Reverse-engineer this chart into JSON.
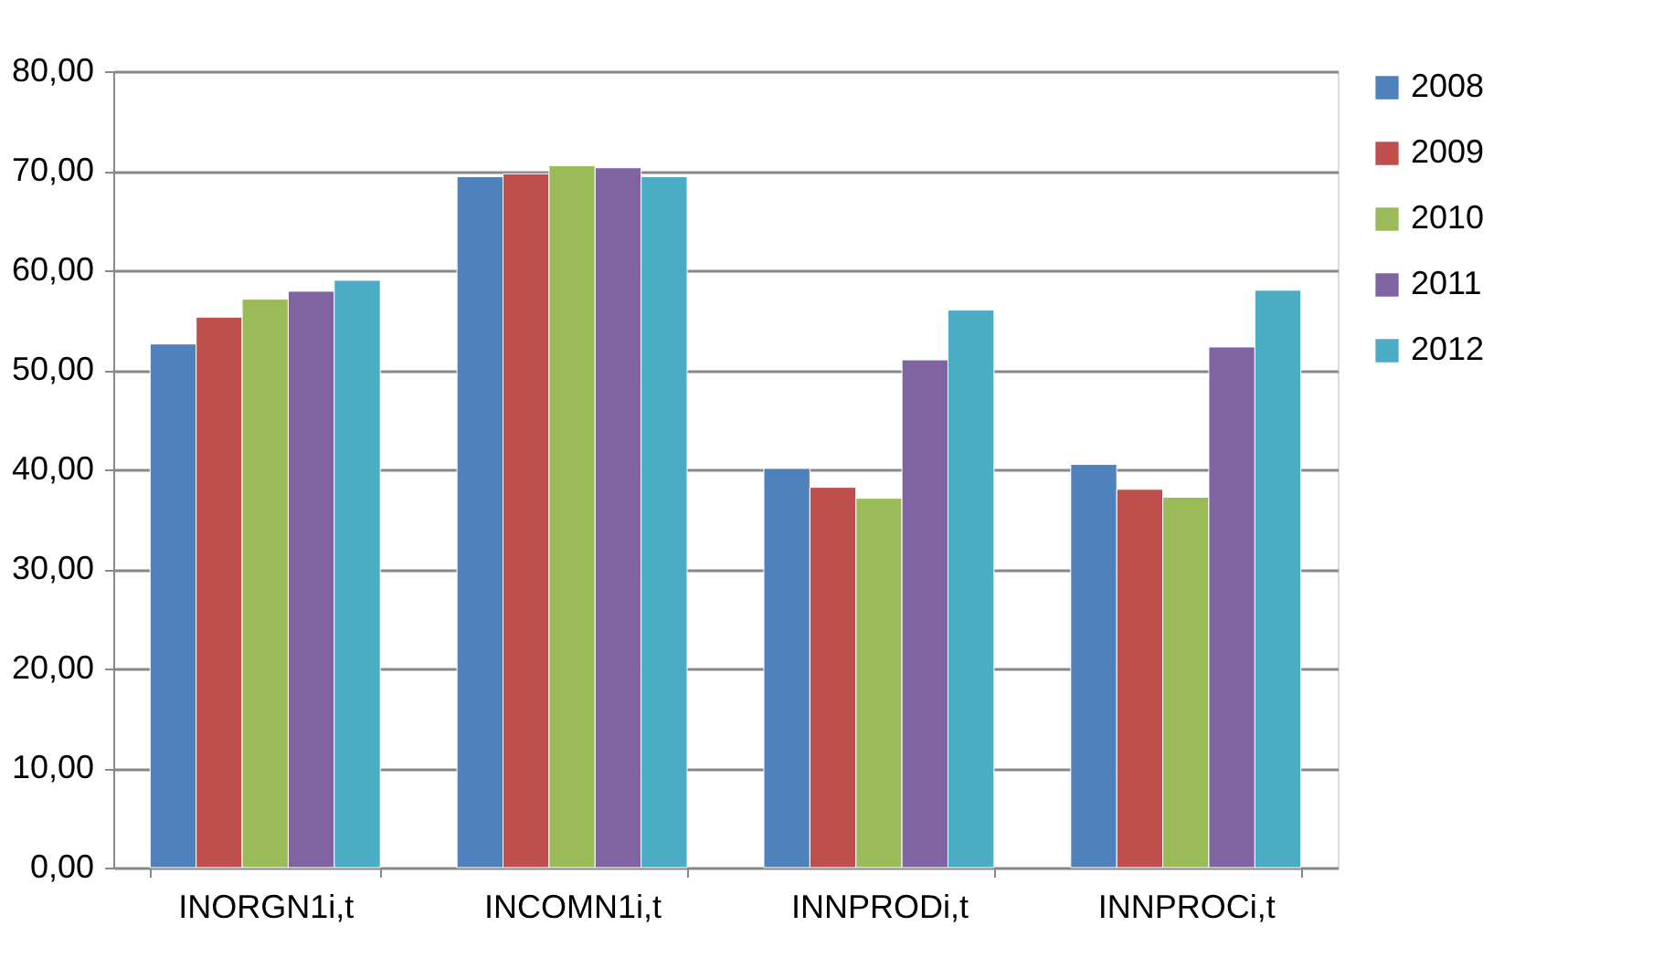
{
  "chart_data": {
    "type": "bar",
    "categories": [
      "INORGN1i,t",
      "INCOMN1i,t",
      "INNPRODi,t",
      "INNPROCi,t"
    ],
    "series": [
      {
        "name": "2008",
        "color": "#4f81bd",
        "values": [
          52.6,
          69.4,
          40.1,
          40.5
        ]
      },
      {
        "name": "2009",
        "color": "#c0504d",
        "values": [
          55.3,
          69.7,
          38.2,
          38.0
        ]
      },
      {
        "name": "2010",
        "color": "#9bbb59",
        "values": [
          57.1,
          70.5,
          37.1,
          37.2
        ]
      },
      {
        "name": "2011",
        "color": "#8064a2",
        "values": [
          57.9,
          70.3,
          51.0,
          52.3
        ]
      },
      {
        "name": "2012",
        "color": "#4bacc6",
        "values": [
          59.0,
          69.4,
          56.0,
          58.0
        ]
      }
    ],
    "ylim": [
      0,
      80
    ],
    "yticks": [
      {
        "value": 0,
        "label": "0,00"
      },
      {
        "value": 10,
        "label": "10,00"
      },
      {
        "value": 20,
        "label": "20,00"
      },
      {
        "value": 30,
        "label": "30,00"
      },
      {
        "value": 40,
        "label": "40,00"
      },
      {
        "value": 50,
        "label": "50,00"
      },
      {
        "value": 60,
        "label": "60,00"
      },
      {
        "value": 70,
        "label": "70,00"
      },
      {
        "value": 80,
        "label": "80,00"
      }
    ],
    "grid": "y",
    "legend": "right"
  }
}
